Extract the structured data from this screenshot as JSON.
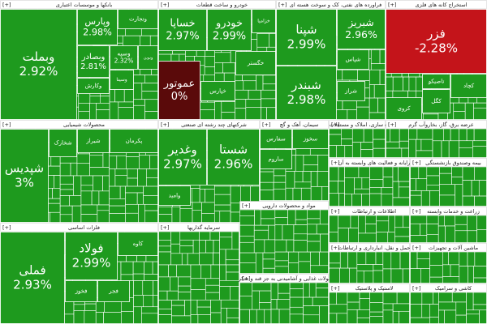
{
  "chart_data": {
    "type": "treemap",
    "expand_label": "[+]",
    "colors": {
      "up": "#1e9a1e",
      "flat": "#5a0a0a",
      "down": "#c4141a"
    },
    "sectors": [
      {
        "name": "بانکها و موسسات اعتباری",
        "tiles": [
          {
            "name": "وبملت",
            "value": 2.92,
            "value_label": "2.92%"
          },
          {
            "name": "وپارس",
            "value": 2.98,
            "value_label": "2.98%"
          },
          {
            "name": "وبصادر",
            "value": 2.81,
            "value_label": "2.81%"
          },
          {
            "name": "وسپه",
            "value": 2.32,
            "value_label": "2.32%"
          },
          {
            "name": "وتجارت"
          },
          {
            "name": "وکارش"
          },
          {
            "name": "ونوین"
          },
          {
            "name": "وسینا"
          }
        ]
      },
      {
        "name": "خودرو و ساخت قطعات",
        "tiles": [
          {
            "name": "خساپا",
            "value": 2.97,
            "value_label": "2.97%"
          },
          {
            "name": "خودرو",
            "value": 2.99,
            "value_label": "2.99%"
          },
          {
            "name": "عموتور",
            "value": 0,
            "value_label": "0%"
          },
          {
            "name": "خگستر"
          },
          {
            "name": "خپارس"
          },
          {
            "name": "خزامیا"
          }
        ]
      },
      {
        "name": "فراورده های نفتی، کک و سوخت هسته ای",
        "tiles": [
          {
            "name": "شپنا",
            "value": 2.99,
            "value_label": "2.99%"
          },
          {
            "name": "شبریز",
            "value": 2.96,
            "value_label": "2.96%"
          },
          {
            "name": "شبندر",
            "value": 2.98,
            "value_label": "2.98%"
          },
          {
            "name": "شراز"
          },
          {
            "name": "شپاس"
          }
        ]
      },
      {
        "name": "استخراج کانه های فلزی",
        "tiles": [
          {
            "name": "فزر",
            "value": -2.28,
            "value_label": "-2.28%"
          },
          {
            "name": "کچاد"
          },
          {
            "name": "کگل"
          },
          {
            "name": "تاصیکو"
          },
          {
            "name": "کروی"
          }
        ]
      },
      {
        "name": "محصولات شیمیایی",
        "tiles": [
          {
            "name": "شپدیس",
            "value": 3,
            "value_label": "3%"
          },
          {
            "name": "شخارک"
          },
          {
            "name": "شیراز"
          },
          {
            "name": "پکرمان"
          }
        ]
      },
      {
        "name": "شرکتهای چند رشته ای صنعتی",
        "tiles": [
          {
            "name": "وغدیر",
            "value": 2.97,
            "value_label": "2.97%"
          },
          {
            "name": "شستا",
            "value": 2.96,
            "value_label": "2.96%"
          },
          {
            "name": "وامید"
          }
        ]
      },
      {
        "name": "سیمان، آهک و گچ",
        "tiles": [
          {
            "name": "سفارس"
          },
          {
            "name": "ساروم"
          },
          {
            "name": "سخوز"
          }
        ]
      },
      {
        "name": "انبوه سازی، املاک و مستغلات",
        "tiles": []
      },
      {
        "name": "عرضه برق، گاز، بخاروآب گرم",
        "tiles": []
      },
      {
        "name": "فلزات اساسی",
        "tiles": [
          {
            "name": "فملی",
            "value": 2.93,
            "value_label": "2.93%"
          },
          {
            "name": "فولاد",
            "value": 2.99,
            "value_label": "2.99%"
          },
          {
            "name": "کاوه"
          },
          {
            "name": "فخوز"
          },
          {
            "name": "فجر"
          }
        ]
      },
      {
        "name": "سرمایه گذاریها",
        "tiles": []
      },
      {
        "name": "مواد و محصولات دارویی",
        "tiles": []
      },
      {
        "name": "محصولات غذایی و آشامیدنی به جز قند و شکر",
        "tiles": []
      },
      {
        "name": "رایانه و فعالیت های وابسته به آن",
        "tiles": []
      },
      {
        "name": "بیمه وصندوق بازنشستگی",
        "tiles": []
      },
      {
        "name": "اطلاعات و ارتباطات",
        "tiles": []
      },
      {
        "name": "زراعت و خدمات وابسته",
        "tiles": []
      },
      {
        "name": "حمل و نقل، انبارداری و ارتباطات",
        "tiles": []
      },
      {
        "name": "ماشین آلات و تجهیزات",
        "tiles": []
      },
      {
        "name": "لاستیک و پلاستیک",
        "tiles": []
      },
      {
        "name": "کاشی و سرامیک",
        "tiles": []
      }
    ]
  }
}
